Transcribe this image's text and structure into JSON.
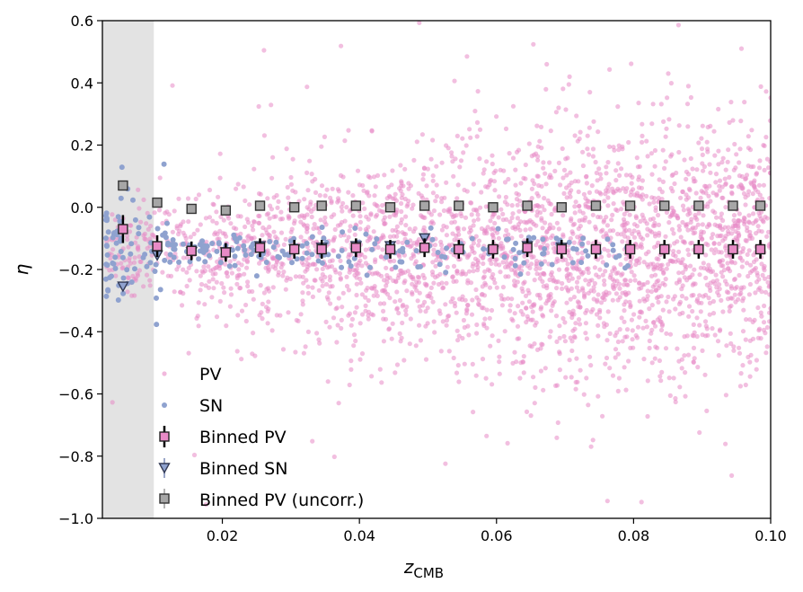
{
  "chart_data": {
    "type": "scatter",
    "xlabel": "z",
    "xlabel_sub": "CMB",
    "ylabel": "η",
    "xlim": [
      0.0025,
      0.1
    ],
    "ylim": [
      -1.0,
      0.6
    ],
    "xticks": [
      0.02,
      0.04,
      0.06,
      0.08,
      0.1
    ],
    "xtick_labels": [
      "0.02",
      "0.04",
      "0.06",
      "0.08",
      "0.10"
    ],
    "yticks": [
      -1.0,
      -0.8,
      -0.6,
      -0.4,
      -0.2,
      0.0,
      0.2,
      0.4,
      0.6
    ],
    "ytick_labels": [
      "−1.0",
      "−0.8",
      "−0.6",
      "−0.4",
      "−0.2",
      "0.0",
      "0.2",
      "0.4",
      "0.6"
    ],
    "shaded_region": {
      "x_range": [
        0.0025,
        0.01
      ],
      "color": "#e3e3e3"
    },
    "legend_placement": "lower-left",
    "legend": [
      "PV",
      "SN",
      "Binned PV",
      "Binned SN",
      "Binned PV (uncorr.)"
    ],
    "colors": {
      "pv": "#e88ac6",
      "sn": "#8fa2cf",
      "binned_pv": "#e88ac6",
      "binned_sn": "#8fa2cf",
      "uncorr_fill": "#a6a6a6",
      "edge": "#222222"
    },
    "series": [
      {
        "name": "Binned PV",
        "x": [
          0.0055,
          0.0105,
          0.0155,
          0.0205,
          0.0255,
          0.0305,
          0.0345,
          0.0395,
          0.0445,
          0.0495,
          0.0545,
          0.0595,
          0.0645,
          0.0695,
          0.0745,
          0.0795,
          0.0845,
          0.0895,
          0.0945,
          0.0985
        ],
        "y": [
          -0.07,
          -0.125,
          -0.14,
          -0.145,
          -0.13,
          -0.135,
          -0.135,
          -0.13,
          -0.135,
          -0.13,
          -0.135,
          -0.135,
          -0.13,
          -0.135,
          -0.135,
          -0.135,
          -0.135,
          -0.135,
          -0.135,
          -0.135
        ],
        "yerr": [
          0.045,
          0.035,
          0.03,
          0.03,
          0.03,
          0.03,
          0.03,
          0.03,
          0.03,
          0.03,
          0.03,
          0.03,
          0.03,
          0.03,
          0.03,
          0.03,
          0.03,
          0.03,
          0.03,
          0.03
        ]
      },
      {
        "name": "Binned SN",
        "x": [
          0.0055,
          0.0105,
          0.0155,
          0.0205,
          0.0255,
          0.0305,
          0.0345,
          0.0395,
          0.0445,
          0.0495,
          0.0545,
          0.0595,
          0.0645,
          0.0695
        ],
        "y": [
          -0.255,
          -0.155,
          -0.145,
          -0.145,
          -0.125,
          -0.135,
          -0.13,
          -0.125,
          -0.125,
          -0.1,
          -0.135,
          -0.14,
          -0.125,
          -0.13
        ],
        "yerr": [
          0.015,
          0.01,
          0.01,
          0.01,
          0.01,
          0.01,
          0.01,
          0.01,
          0.01,
          0.01,
          0.01,
          0.01,
          0.01,
          0.01
        ]
      },
      {
        "name": "Binned PV (uncorr.)",
        "x": [
          0.0055,
          0.0105,
          0.0155,
          0.0205,
          0.0255,
          0.0305,
          0.0345,
          0.0395,
          0.0445,
          0.0495,
          0.0545,
          0.0595,
          0.0645,
          0.0695,
          0.0745,
          0.0795,
          0.0845,
          0.0895,
          0.0945,
          0.0985
        ],
        "y": [
          0.07,
          0.015,
          -0.005,
          -0.01,
          0.005,
          0.0,
          0.005,
          0.005,
          0.0,
          0.005,
          0.005,
          0.0,
          0.005,
          0.0,
          0.005,
          0.005,
          0.005,
          0.005,
          0.005,
          0.005
        ],
        "yerr": [
          0.01,
          0.008,
          0.006,
          0.006,
          0.006,
          0.006,
          0.006,
          0.006,
          0.006,
          0.006,
          0.006,
          0.006,
          0.006,
          0.006,
          0.006,
          0.006,
          0.006,
          0.006,
          0.006,
          0.006
        ]
      }
    ],
    "pv_cloud": {
      "approx_points": 3000,
      "x_range": [
        0.003,
        0.1
      ],
      "y_center": -0.14,
      "y_spread": 0.2,
      "y_range": [
        -1.0,
        0.6
      ]
    },
    "sn_cloud": {
      "approx_points": 260,
      "x_range": [
        0.003,
        0.08
      ],
      "y_center": -0.14,
      "y_spread": 0.03
    }
  }
}
